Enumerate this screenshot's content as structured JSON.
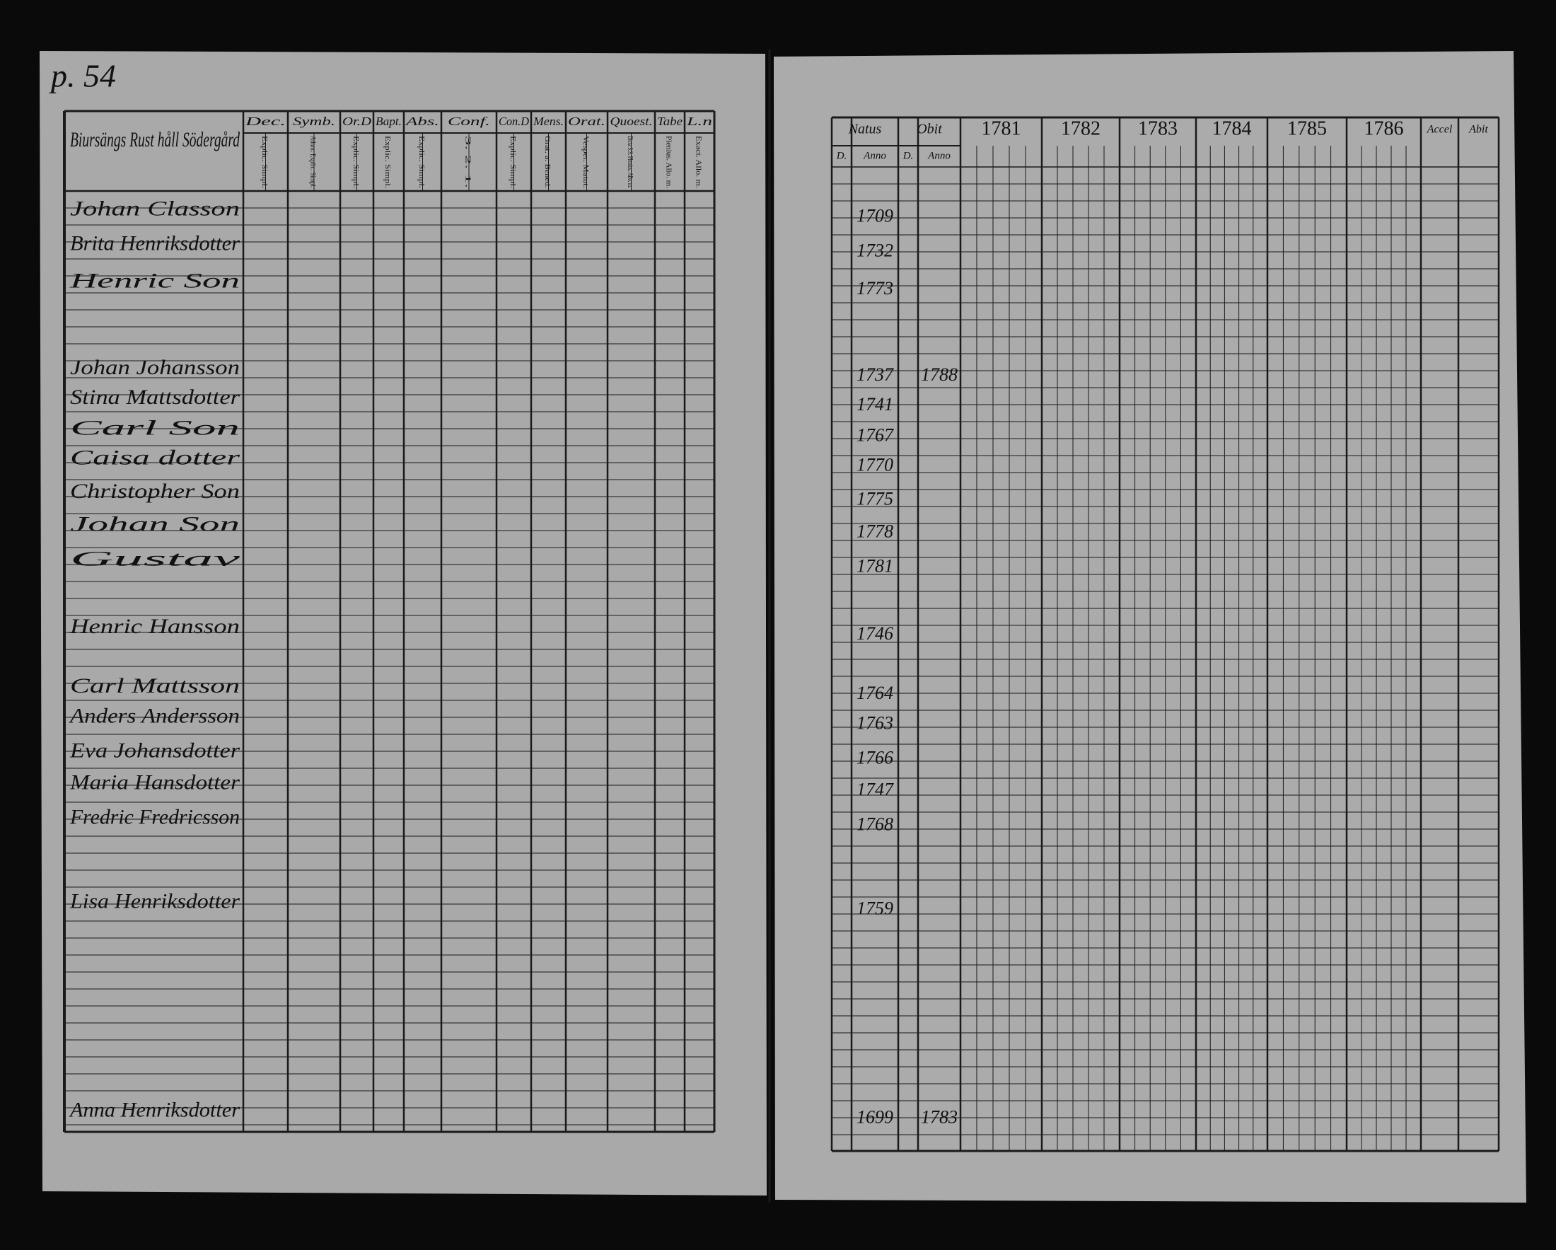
{
  "page_number": "p. 54",
  "left": {
    "title": "Biursängs Rust håll Södergård",
    "columns": [
      {
        "title": "Dec.",
        "sub": "Explic. Simpl."
      },
      {
        "title": "Symb.",
        "sub": "Athan. Explic. Simpl."
      },
      {
        "title": "Or.D",
        "sub": "Explic. Simpl."
      },
      {
        "title": "Bapt.",
        "sub": "Explic. Simpl."
      },
      {
        "title": "Abs.",
        "sub": "Explic. Simpl."
      },
      {
        "title": "Conf.",
        "sub": "3. 2. 1."
      },
      {
        "title": "Con.D",
        "sub": "Explic. Simpl."
      },
      {
        "title": "Mens.",
        "sub": "Grat. a. Bened."
      },
      {
        "title": "Orat.",
        "sub": "Vesper. Matut."
      },
      {
        "title": "Quoest.",
        "sub": "Dicta S.S. Plenius. Allo. m."
      },
      {
        "title": "Tabe",
        "sub": "Plenius. Allo. m."
      },
      {
        "title": "L.n",
        "sub": "Exact. Allo. m."
      }
    ]
  },
  "right": {
    "natus": "Natus",
    "obit": "Obit",
    "natus_sub": [
      "D.",
      "Anno"
    ],
    "obit_sub": [
      "D.",
      "Anno"
    ],
    "years": [
      "1781",
      "1782",
      "1783",
      "1784",
      "1785",
      "1786"
    ],
    "accel": "Accel",
    "abit": "Abit"
  },
  "rows": [
    {
      "name": "Johan Classon",
      "born": "1709"
    },
    {
      "name": "Brita Henriksdotter",
      "born": "1732"
    },
    {
      "name": "Henric Son",
      "born": "1773"
    },
    {
      "name": "Johan Johansson",
      "born": "1737",
      "died": "1788"
    },
    {
      "name": "Stina Mattsdotter",
      "born": "1741"
    },
    {
      "name": "Carl Son",
      "born": "1767"
    },
    {
      "name": "Caisa dotter",
      "born": "1770"
    },
    {
      "name": "Christopher Son",
      "born": "1775"
    },
    {
      "name": "Johan Son",
      "born": "1778"
    },
    {
      "name": "Gustav",
      "born": "1781"
    },
    {
      "name": "Henric Hansson",
      "born": "1746"
    },
    {
      "name": "Carl Mattsson",
      "born": "1764"
    },
    {
      "name": "Anders Andersson",
      "born": "1763"
    },
    {
      "name": "Eva Johansdotter",
      "born": "1766"
    },
    {
      "name": "Maria Hansdotter",
      "born": "1747"
    },
    {
      "name": "Fredric Fredricsson",
      "born": "1768"
    },
    {
      "name": "Lisa Henriksdotter",
      "born": "1759"
    },
    {
      "name": "Anna Henriksdotter",
      "born": "1699",
      "died": "1783"
    }
  ]
}
